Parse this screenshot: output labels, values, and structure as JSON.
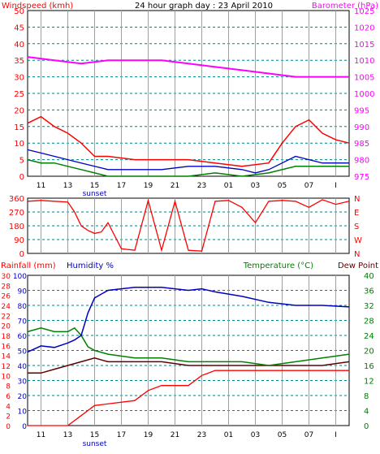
{
  "chart_data": [
    {
      "type": "line",
      "title": "24 hour graph day : 23 April 2010",
      "left_axis_label": "Windspeed (kmh)",
      "right_axis_label": "Barometer (hPa)",
      "left_ylim": [
        0,
        50
      ],
      "left_ticks": [
        0,
        5,
        10,
        15,
        20,
        25,
        30,
        35,
        40,
        45,
        50
      ],
      "right_ylim": [
        975,
        1025
      ],
      "right_ticks": [
        975,
        980,
        985,
        990,
        995,
        1000,
        1005,
        1010,
        1015,
        1020,
        1025
      ],
      "x_ticks": [
        "11",
        "13",
        "15",
        "17",
        "19",
        "21",
        "23",
        "01",
        "03",
        "05",
        "07",
        "I"
      ],
      "annotation": "sunset",
      "grid": true,
      "colors": {
        "barometer": "#ff00ff",
        "gust": "#ff0000",
        "avg_wind": "#0000c0",
        "wind_min": "#008000"
      },
      "series": [
        {
          "hours_after_start": [
            0,
            2,
            4,
            6,
            8,
            10,
            12,
            14,
            16,
            18,
            20,
            21,
            22,
            23,
            24
          ],
          "values": [
            1011,
            1010,
            1009,
            1010,
            1010,
            1010,
            1009,
            1008,
            1007,
            1006,
            1005,
            1005,
            1005,
            1005,
            1005
          ]
        },
        {
          "hours_after_start": [
            0,
            1,
            2,
            3,
            4,
            5,
            6,
            8,
            10,
            12,
            14,
            16,
            18,
            19,
            20,
            21,
            22,
            23,
            24
          ],
          "values": [
            16,
            18,
            15,
            13,
            10,
            6,
            6,
            5,
            5,
            5,
            4,
            3,
            4,
            10,
            15,
            17,
            13,
            11,
            10
          ]
        },
        {
          "hours_after_start": [
            0,
            1,
            2,
            3,
            4,
            5,
            6,
            8,
            10,
            12,
            14,
            16,
            17,
            18,
            19,
            20,
            21,
            22,
            23,
            24
          ],
          "values": [
            8,
            7,
            6,
            5,
            4,
            3,
            2,
            2,
            2,
            3,
            3,
            2,
            1,
            2,
            4,
            6,
            5,
            4,
            4,
            4
          ]
        },
        {
          "hours_after_start": [
            0,
            1,
            2,
            3,
            4,
            5,
            6,
            8,
            10,
            12,
            14,
            16,
            18,
            20,
            22,
            24
          ],
          "values": [
            5,
            4,
            4,
            3,
            2,
            1,
            0,
            0,
            0,
            0,
            1,
            0,
            1,
            3,
            3,
            3
          ]
        }
      ]
    },
    {
      "type": "line",
      "left_ticks": [
        0,
        90,
        180,
        270,
        360
      ],
      "right_ticks": [
        "N",
        "E",
        "S",
        "W",
        "N"
      ],
      "right_tick_colors": [
        "#ff0000",
        "#ff0000",
        "#ff0000",
        "#ff0000",
        "#ff0000"
      ],
      "ylim": [
        0,
        360
      ],
      "x_ticks": [
        "11",
        "13",
        "15",
        "17",
        "19",
        "21",
        "23",
        "01",
        "03",
        "05",
        "07",
        "I"
      ],
      "grid": true,
      "colors": {
        "direction": "#ff0000"
      },
      "series": [
        {
          "hours_after_start": [
            0,
            1,
            2,
            3,
            3.5,
            4,
            4.5,
            5,
            5.5,
            6,
            7,
            8,
            9,
            10,
            11,
            12,
            13,
            14,
            15,
            16,
            17,
            18,
            19,
            20,
            21,
            22,
            23,
            24
          ],
          "values": [
            340,
            345,
            340,
            335,
            270,
            180,
            150,
            130,
            140,
            200,
            30,
            20,
            345,
            20,
            340,
            20,
            15,
            340,
            345,
            300,
            200,
            340,
            345,
            340,
            300,
            350,
            320,
            340
          ]
        }
      ]
    },
    {
      "type": "line",
      "left_label_1": "Rainfall (mm)",
      "left_label_2": "Humidity %",
      "right_label_1": "Temperature (°C)",
      "right_label_2": "Dew Point",
      "rain_ticks": [
        0,
        2,
        4,
        6,
        8,
        10,
        12,
        14,
        16,
        18,
        20,
        22,
        24,
        26,
        28,
        30
      ],
      "humidity_ticks": [
        0,
        10,
        20,
        30,
        40,
        50,
        60,
        70,
        80,
        90,
        100
      ],
      "temp_ticks": [
        0,
        4,
        8,
        12,
        16,
        20,
        24,
        28,
        32,
        36,
        40
      ],
      "rain_ylim": [
        0,
        30
      ],
      "humidity_ylim": [
        0,
        100
      ],
      "temp_ylim": [
        0,
        40
      ],
      "x_ticks": [
        "11",
        "13",
        "15",
        "17",
        "19",
        "21",
        "23",
        "01",
        "03",
        "05",
        "07",
        "I"
      ],
      "annotation": "sunset",
      "grid": true,
      "colors": {
        "rain": "#ff0000",
        "humidity": "#0000c0",
        "temperature": "#008000",
        "dewpoint": "#600000"
      },
      "series": [
        {
          "hours_after_start": [
            0,
            3,
            4,
            5,
            8,
            9,
            10,
            12,
            13,
            14,
            16,
            18,
            24
          ],
          "values": [
            0,
            0,
            2,
            4,
            5,
            7,
            8,
            8,
            10,
            11,
            11,
            11,
            11
          ]
        },
        {
          "hours_after_start": [
            0,
            1,
            2,
            3,
            3.5,
            4,
            4.5,
            5,
            6,
            8,
            10,
            12,
            13,
            14,
            16,
            18,
            20,
            22,
            24
          ],
          "values": [
            49,
            53,
            52,
            55,
            57,
            60,
            75,
            85,
            90,
            92,
            92,
            90,
            91,
            89,
            86,
            82,
            80,
            80,
            79
          ]
        },
        {
          "hours_after_start": [
            0,
            1,
            2,
            3,
            3.5,
            4,
            4.5,
            5,
            6,
            8,
            10,
            12,
            14,
            16,
            18,
            20,
            22,
            24
          ],
          "values": [
            25,
            26,
            25,
            25,
            26,
            24,
            21,
            20,
            19,
            18,
            18,
            17,
            17,
            17,
            16,
            17,
            18,
            19
          ]
        },
        {
          "hours_after_start": [
            0,
            1,
            2,
            3,
            4,
            5,
            6,
            8,
            10,
            12,
            14,
            16,
            18,
            20,
            22,
            24
          ],
          "values": [
            14,
            14,
            15,
            16,
            17,
            18,
            17,
            17,
            17,
            16,
            16,
            16,
            16,
            16,
            16,
            17
          ]
        }
      ]
    }
  ]
}
